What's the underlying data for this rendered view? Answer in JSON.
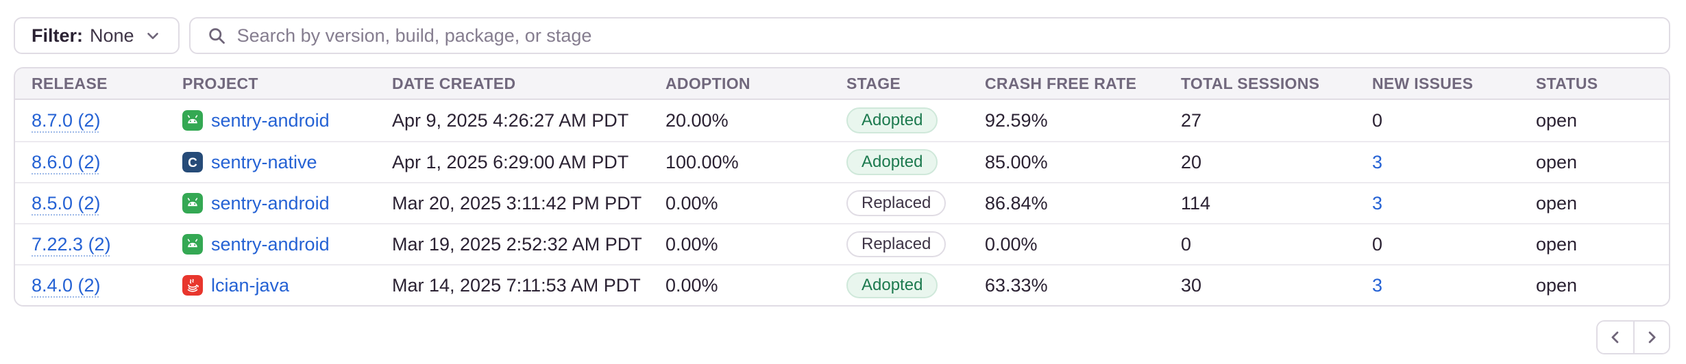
{
  "filter": {
    "label": "Filter:",
    "value": "None"
  },
  "search": {
    "placeholder": "Search by version, build, package, or stage"
  },
  "colors": {
    "link_blue": "#2562d4",
    "android_green": "#34a853",
    "c_navy": "#264b78",
    "java_red": "#e8362d",
    "adopted_text": "#1d7a4f",
    "border_gray": "#e0dce4",
    "header_bg": "#f5f4f7"
  },
  "table": {
    "columns": [
      "RELEASE",
      "PROJECT",
      "DATE CREATED",
      "ADOPTION",
      "STAGE",
      "CRASH FREE RATE",
      "TOTAL SESSIONS",
      "NEW ISSUES",
      "STATUS"
    ],
    "rows": [
      {
        "release": "8.7.0 (2)",
        "platform": "android",
        "project": "sentry-android",
        "date_created": "Apr 9, 2025 4:26:27 AM PDT",
        "adoption": "20.00%",
        "stage": "Adopted",
        "crash_free_rate": "92.59%",
        "total_sessions": "27",
        "new_issues": "0",
        "status": "open"
      },
      {
        "release": "8.6.0 (2)",
        "platform": "c",
        "project": "sentry-native",
        "date_created": "Apr 1, 2025 6:29:00 AM PDT",
        "adoption": "100.00%",
        "stage": "Adopted",
        "crash_free_rate": "85.00%",
        "total_sessions": "20",
        "new_issues": "3",
        "status": "open"
      },
      {
        "release": "8.5.0 (2)",
        "platform": "android",
        "project": "sentry-android",
        "date_created": "Mar 20, 2025 3:11:42 PM PDT",
        "adoption": "0.00%",
        "stage": "Replaced",
        "crash_free_rate": "86.84%",
        "total_sessions": "114",
        "new_issues": "3",
        "status": "open"
      },
      {
        "release": "7.22.3 (2)",
        "platform": "android",
        "project": "sentry-android",
        "date_created": "Mar 19, 2025 2:52:32 AM PDT",
        "adoption": "0.00%",
        "stage": "Replaced",
        "crash_free_rate": "0.00%",
        "total_sessions": "0",
        "new_issues": "0",
        "status": "open"
      },
      {
        "release": "8.4.0 (2)",
        "platform": "java",
        "project": "lcian-java",
        "date_created": "Mar 14, 2025 7:11:53 AM PDT",
        "adoption": "0.00%",
        "stage": "Adopted",
        "crash_free_rate": "63.33%",
        "total_sessions": "30",
        "new_issues": "3",
        "status": "open"
      }
    ]
  },
  "pagination": {
    "previous": "previous-page",
    "next": "next-page"
  }
}
